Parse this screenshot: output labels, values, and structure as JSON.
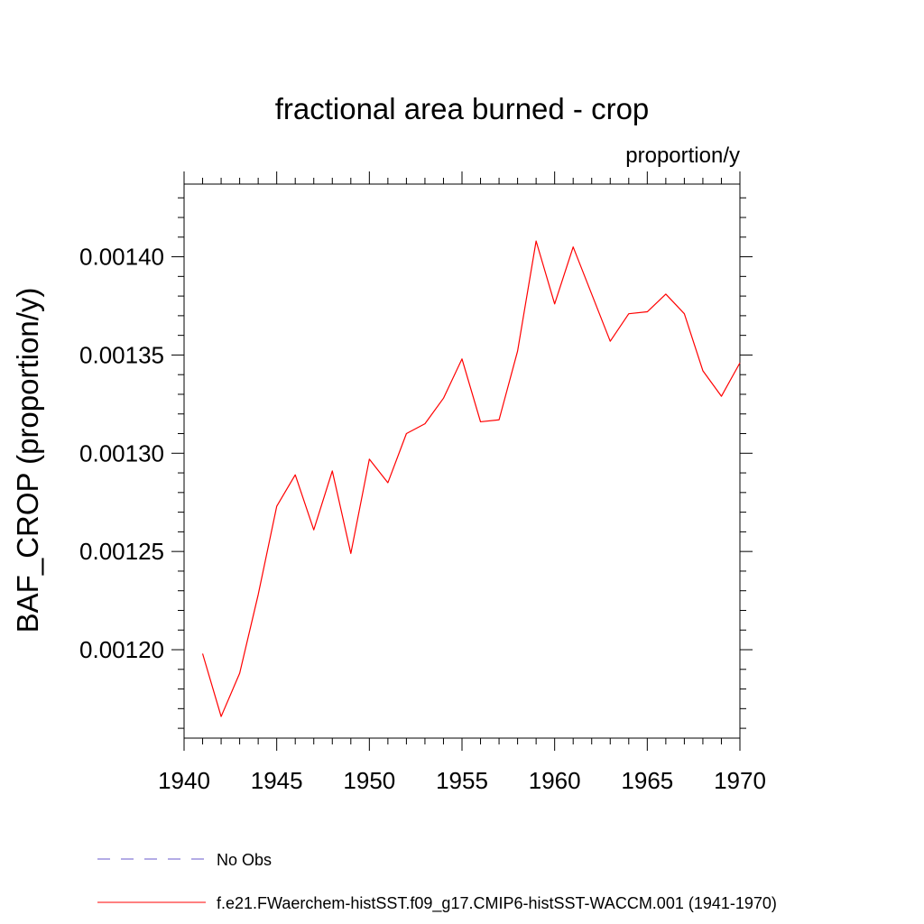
{
  "chart_data": {
    "type": "line",
    "title": "fractional area burned - crop",
    "units_label": "proportion/y",
    "xlabel": "",
    "ylabel": "BAF_CROP  (proportion/y)",
    "xlim": [
      1940,
      1970
    ],
    "ylim": [
      0.001155,
      0.001437
    ],
    "x_ticks": [
      1940,
      1945,
      1950,
      1955,
      1960,
      1965,
      1970
    ],
    "y_ticks": [
      0.0012,
      0.00125,
      0.0013,
      0.00135,
      0.0014
    ],
    "y_tick_labels": [
      "0.00120",
      "0.00125",
      "0.00130",
      "0.00135",
      "0.00140"
    ],
    "grid": false,
    "legend_position": "bottom",
    "series": [
      {
        "name": "f.e21.FWaerchem-histSST.f09_g17.CMIP6-histSST-WACCM.001 (1941-1970)",
        "color": "#ff0000",
        "style": "solid",
        "x": [
          1941,
          1942,
          1943,
          1944,
          1945,
          1946,
          1947,
          1948,
          1949,
          1950,
          1951,
          1952,
          1953,
          1954,
          1955,
          1956,
          1957,
          1958,
          1959,
          1960,
          1961,
          1962,
          1963,
          1964,
          1965,
          1966,
          1967,
          1968,
          1969,
          1970
        ],
        "y": [
          0.001198,
          0.001166,
          0.001188,
          0.001228,
          0.001273,
          0.001289,
          0.001261,
          0.001291,
          0.001249,
          0.001297,
          0.001285,
          0.00131,
          0.001315,
          0.001328,
          0.001348,
          0.001316,
          0.001317,
          0.001352,
          0.001408,
          0.001376,
          0.001405,
          0.001381,
          0.001357,
          0.001371,
          0.001372,
          0.001381,
          0.001371,
          0.001342,
          0.001329,
          0.001346
        ]
      }
    ],
    "legend": [
      {
        "label": "No Obs",
        "color": "#6a5acd",
        "style": "dashed"
      },
      {
        "label": "f.e21.FWaerchem-histSST.f09_g17.CMIP6-histSST-WACCM.001 (1941-1970)",
        "color": "#ff0000",
        "style": "solid"
      }
    ]
  }
}
